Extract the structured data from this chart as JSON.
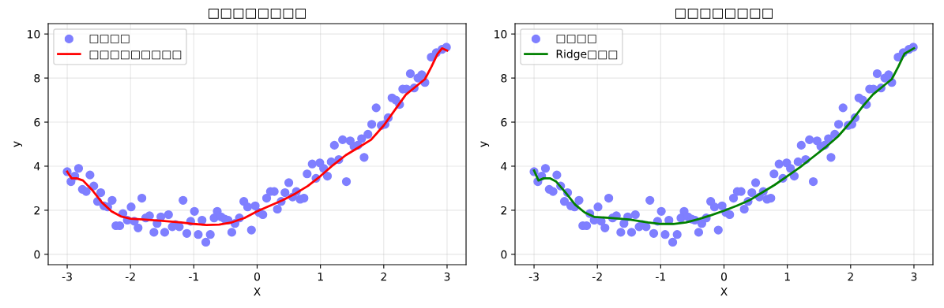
{
  "chart_data": [
    {
      "type": "scatter",
      "title": "□□□□□□□□",
      "xlabel": "X",
      "ylabel": "y",
      "xlim": [
        -3.3,
        3.3
      ],
      "ylim": [
        -0.47,
        10.47
      ],
      "xticks": [
        -3,
        -2,
        -1,
        0,
        1,
        2,
        3
      ],
      "yticks": [
        0,
        2,
        4,
        6,
        8,
        10
      ],
      "grid": true,
      "legend": "top left",
      "series": [
        {
          "name": "□□□□",
          "color": "#7f7fff",
          "marker": "circle",
          "x": [
            -3,
            -2.94,
            -2.88,
            -2.82,
            -2.76,
            -2.7,
            -2.64,
            -2.58,
            -2.52,
            -2.47,
            -2.42,
            -2.36,
            -2.29,
            -2.23,
            -2.17,
            -2.12,
            -2.05,
            -1.99,
            -1.94,
            -1.88,
            -1.82,
            -1.76,
            -1.7,
            -1.63,
            -1.58,
            -1.52,
            -1.46,
            -1.4,
            -1.34,
            -1.29,
            -1.23,
            -1.17,
            -1.11,
            -1.05,
            -0.99,
            -0.93,
            -0.87,
            -0.81,
            -0.74,
            -0.68,
            -0.63,
            -0.57,
            -0.51,
            -0.46,
            -0.4,
            -0.35,
            -0.28,
            -0.21,
            -0.15,
            -0.09,
            -0.03,
            0.03,
            0.09,
            0.15,
            0.21,
            0.27,
            0.32,
            0.38,
            0.44,
            0.5,
            0.56,
            0.62,
            0.68,
            0.74,
            0.79,
            0.87,
            0.93,
            0.99,
            1.05,
            1.11,
            1.17,
            1.22,
            1.29,
            1.35,
            1.41,
            1.47,
            1.53,
            1.59,
            1.65,
            1.69,
            1.75,
            1.81,
            1.88,
            1.96,
            2.02,
            2.07,
            2.13,
            2.19,
            2.25,
            2.3,
            2.36,
            2.42,
            2.48,
            2.54,
            2.6,
            2.65,
            2.75,
            2.83,
            2.92,
            2.99
          ],
          "values": [
            3.75,
            3.3,
            3.55,
            3.9,
            2.95,
            2.85,
            3.6,
            3.1,
            2.4,
            2.8,
            2.2,
            2.15,
            2.45,
            1.3,
            1.3,
            1.85,
            1.55,
            2.15,
            1.5,
            1.2,
            2.55,
            1.65,
            1.75,
            1.0,
            1.4,
            1.7,
            1.0,
            1.8,
            1.25,
            1.35,
            1.25,
            2.45,
            0.95,
            1.5,
            1.95,
            0.9,
            1.55,
            0.55,
            0.9,
            1.65,
            1.95,
            1.7,
            1.6,
            1.55,
            1.0,
            1.4,
            1.65,
            2.4,
            2.15,
            1.1,
            2.2,
            1.9,
            1.8,
            2.55,
            2.85,
            2.85,
            2.05,
            2.4,
            2.8,
            3.25,
            2.6,
            2.85,
            2.5,
            2.55,
            3.65,
            4.1,
            3.45,
            4.15,
            3.9,
            3.55,
            4.2,
            4.95,
            4.3,
            5.2,
            3.3,
            5.15,
            4.9,
            4.95,
            5.25,
            4.4,
            5.45,
            5.9,
            6.65,
            5.85,
            5.9,
            6.2,
            7.1,
            7.0,
            6.8,
            7.5,
            7.5,
            8.2,
            7.55,
            8.0,
            8.15,
            7.8,
            8.95,
            9.15,
            9.3,
            9.4
          ]
        },
        {
          "type": "line",
          "name": "□□□□□□□□□",
          "color": "#ff0000",
          "marker": "none",
          "line_style": "solid",
          "x": [
            -3,
            -2.93,
            -2.85,
            -2.75,
            -2.6,
            -2.45,
            -2.3,
            -2.15,
            -2.0,
            -1.8,
            -1.5,
            -1.2,
            -1.0,
            -0.8,
            -0.6,
            -0.4,
            -0.2,
            0,
            0.2,
            0.4,
            0.6,
            0.8,
            1.0,
            1.2,
            1.4,
            1.6,
            1.8,
            2.0,
            2.2,
            2.35,
            2.5,
            2.65,
            2.75,
            2.85,
            2.92,
            3.0
          ],
          "values": [
            3.75,
            3.45,
            3.45,
            3.35,
            2.9,
            2.35,
            1.95,
            1.72,
            1.62,
            1.58,
            1.52,
            1.45,
            1.38,
            1.33,
            1.35,
            1.45,
            1.65,
            1.95,
            2.2,
            2.45,
            2.75,
            3.1,
            3.55,
            4.05,
            4.5,
            4.85,
            5.2,
            5.85,
            6.65,
            7.25,
            7.6,
            7.95,
            8.5,
            9.1,
            9.35,
            9.25
          ]
        }
      ]
    },
    {
      "type": "scatter",
      "title": "□□□□□□□□",
      "xlabel": "X",
      "ylabel": "y",
      "xlim": [
        -3.3,
        3.3
      ],
      "ylim": [
        -0.47,
        10.47
      ],
      "xticks": [
        -3,
        -2,
        -1,
        0,
        1,
        2,
        3
      ],
      "yticks": [
        0,
        2,
        4,
        6,
        8,
        10
      ],
      "grid": true,
      "legend": "top left",
      "series": [
        {
          "name": "□□□□",
          "color": "#7f7fff",
          "marker": "circle",
          "x": [
            -3,
            -2.94,
            -2.88,
            -2.82,
            -2.76,
            -2.7,
            -2.64,
            -2.58,
            -2.52,
            -2.47,
            -2.42,
            -2.36,
            -2.29,
            -2.23,
            -2.17,
            -2.12,
            -2.05,
            -1.99,
            -1.94,
            -1.88,
            -1.82,
            -1.76,
            -1.7,
            -1.63,
            -1.58,
            -1.52,
            -1.46,
            -1.4,
            -1.34,
            -1.29,
            -1.23,
            -1.17,
            -1.11,
            -1.05,
            -0.99,
            -0.93,
            -0.87,
            -0.81,
            -0.74,
            -0.68,
            -0.63,
            -0.57,
            -0.51,
            -0.46,
            -0.4,
            -0.35,
            -0.28,
            -0.21,
            -0.15,
            -0.09,
            -0.03,
            0.03,
            0.09,
            0.15,
            0.21,
            0.27,
            0.32,
            0.38,
            0.44,
            0.5,
            0.56,
            0.62,
            0.68,
            0.74,
            0.79,
            0.87,
            0.93,
            0.99,
            1.05,
            1.11,
            1.17,
            1.22,
            1.29,
            1.35,
            1.41,
            1.47,
            1.53,
            1.59,
            1.65,
            1.69,
            1.75,
            1.81,
            1.88,
            1.96,
            2.02,
            2.07,
            2.13,
            2.19,
            2.25,
            2.3,
            2.36,
            2.42,
            2.48,
            2.54,
            2.6,
            2.65,
            2.75,
            2.83,
            2.92,
            2.99
          ],
          "values": [
            3.75,
            3.3,
            3.55,
            3.9,
            2.95,
            2.85,
            3.6,
            3.1,
            2.4,
            2.8,
            2.2,
            2.15,
            2.45,
            1.3,
            1.3,
            1.85,
            1.55,
            2.15,
            1.5,
            1.2,
            2.55,
            1.65,
            1.75,
            1.0,
            1.4,
            1.7,
            1.0,
            1.8,
            1.25,
            1.35,
            1.25,
            2.45,
            0.95,
            1.5,
            1.95,
            0.9,
            1.55,
            0.55,
            0.9,
            1.65,
            1.95,
            1.7,
            1.6,
            1.55,
            1.0,
            1.4,
            1.65,
            2.4,
            2.15,
            1.1,
            2.2,
            1.9,
            1.8,
            2.55,
            2.85,
            2.85,
            2.05,
            2.4,
            2.8,
            3.25,
            2.6,
            2.85,
            2.5,
            2.55,
            3.65,
            4.1,
            3.45,
            4.15,
            3.9,
            3.55,
            4.2,
            4.95,
            4.3,
            5.2,
            3.3,
            5.15,
            4.9,
            4.95,
            5.25,
            4.4,
            5.45,
            5.9,
            6.65,
            5.85,
            5.9,
            6.2,
            7.1,
            7.0,
            6.8,
            7.5,
            7.5,
            8.2,
            7.55,
            8.0,
            8.15,
            7.8,
            8.95,
            9.15,
            9.3,
            9.4
          ]
        },
        {
          "type": "line",
          "name": "Ridge□□□",
          "color": "#008000",
          "marker": "none",
          "line_style": "solid",
          "x": [
            -3,
            -2.93,
            -2.85,
            -2.75,
            -2.65,
            -2.5,
            -2.35,
            -2.2,
            -2.05,
            -1.8,
            -1.5,
            -1.2,
            -1.0,
            -0.8,
            -0.6,
            -0.4,
            -0.2,
            0,
            0.2,
            0.4,
            0.6,
            0.8,
            1.0,
            1.2,
            1.4,
            1.6,
            1.8,
            2.0,
            2.2,
            2.35,
            2.5,
            2.65,
            2.75,
            2.85,
            3.0
          ],
          "values": [
            3.8,
            3.35,
            3.45,
            3.45,
            3.3,
            2.8,
            2.25,
            1.9,
            1.7,
            1.65,
            1.58,
            1.45,
            1.38,
            1.38,
            1.45,
            1.6,
            1.78,
            1.98,
            2.2,
            2.45,
            2.8,
            3.15,
            3.55,
            3.95,
            4.4,
            4.85,
            5.35,
            6.0,
            6.75,
            7.25,
            7.6,
            7.95,
            8.5,
            9.1,
            9.35
          ]
        }
      ]
    }
  ]
}
